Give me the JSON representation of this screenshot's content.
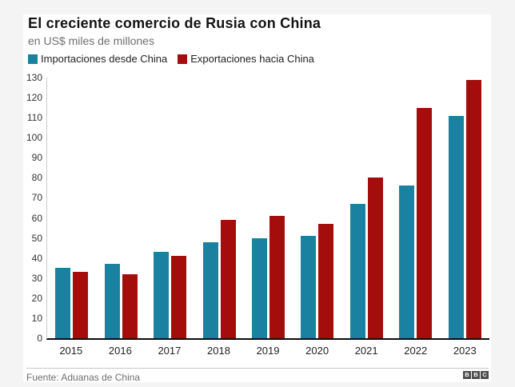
{
  "header": {
    "title": "El creciente comercio de Rusia con China",
    "subtitle": "en US$ miles de millones"
  },
  "legend": [
    {
      "label": "Importaciones desde China",
      "color": "#1b81a0"
    },
    {
      "label": "Exportaciones hacia China",
      "color": "#a50d0d"
    }
  ],
  "chart_data": {
    "type": "bar",
    "title": "El creciente comercio de Rusia con China",
    "subtitle": "en US$ miles de millones",
    "categories": [
      "2015",
      "2016",
      "2017",
      "2018",
      "2019",
      "2020",
      "2021",
      "2022",
      "2023"
    ],
    "series": [
      {
        "name": "Importaciones desde China",
        "color": "#1b81a0",
        "values": [
          35,
          37,
          43,
          48,
          50,
          51,
          67,
          76,
          111
        ]
      },
      {
        "name": "Exportaciones hacia China",
        "color": "#a50d0d",
        "values": [
          33,
          32,
          41,
          59,
          61,
          57,
          80,
          115,
          129
        ]
      }
    ],
    "xlabel": "",
    "ylabel": "",
    "ylim": [
      0,
      130
    ],
    "ytick_step": 10,
    "grid": false,
    "legend_position": "top",
    "axis_colors": {
      "baseline": "#0d0d0d",
      "left_axis": "#cccccc"
    }
  },
  "footer": {
    "source": "Fuente: Aduanas de China",
    "logo_letters": [
      "B",
      "B",
      "C"
    ]
  }
}
